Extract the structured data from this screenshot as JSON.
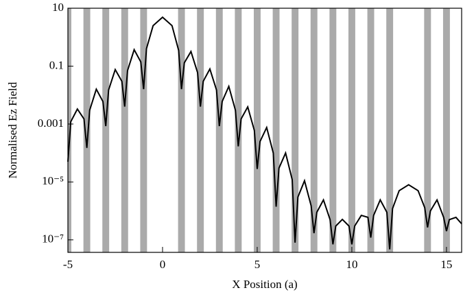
{
  "chart_data": {
    "type": "line",
    "xlabel": "X Position (a)",
    "ylabel": "Normalised Ez Field",
    "log_y": true,
    "xlim": [
      -5,
      15.8
    ],
    "ylim": [
      3.7e-08,
      10
    ],
    "xticks": [
      -5,
      0,
      5,
      10,
      15
    ],
    "yticks": [
      10,
      0.1,
      0.001,
      {
        "value": 1e-05,
        "label": "10⁻⁵"
      },
      {
        "value": 1e-07,
        "label": "10⁻⁷"
      }
    ],
    "rod_centers": [
      -5,
      -4,
      -3,
      -2,
      -1,
      1,
      2,
      3,
      4,
      5,
      6,
      7,
      8,
      9,
      10,
      11,
      12,
      14,
      15
    ],
    "rod_width": 0.36,
    "rod_color": "#aaaaaa",
    "x": [
      -5,
      -4.85,
      -4.5,
      -4.15,
      -4,
      -3.85,
      -3.5,
      -3.15,
      -3,
      -2.85,
      -2.5,
      -2.15,
      -2,
      -1.85,
      -1.5,
      -1.15,
      -1,
      -0.85,
      -0.5,
      0,
      0.5,
      0.85,
      1,
      1.15,
      1.5,
      1.85,
      2,
      2.15,
      2.5,
      2.85,
      3,
      3.15,
      3.5,
      3.85,
      4,
      4.15,
      4.5,
      4.85,
      5,
      5.15,
      5.5,
      5.85,
      6,
      6.15,
      6.5,
      6.85,
      7,
      7.15,
      7.5,
      7.85,
      8,
      8.15,
      8.5,
      8.85,
      9,
      9.15,
      9.5,
      9.85,
      10,
      10.15,
      10.5,
      10.85,
      11,
      11.15,
      11.5,
      11.85,
      12,
      12.15,
      12.5,
      13,
      13.5,
      13.85,
      14,
      14.15,
      14.5,
      14.85,
      15,
      15.15,
      15.5,
      15.8
    ],
    "series": [
      {
        "color": "#000000",
        "values": [
          5e-05,
          0.0012,
          0.0033,
          0.0015,
          0.00015,
          0.003,
          0.016,
          0.006,
          0.00085,
          0.015,
          0.076,
          0.03,
          0.004,
          0.07,
          0.37,
          0.14,
          0.016,
          0.4,
          2.5,
          4.9,
          2.5,
          0.35,
          0.016,
          0.13,
          0.32,
          0.06,
          0.004,
          0.03,
          0.08,
          0.015,
          0.00085,
          0.006,
          0.02,
          0.003,
          0.00017,
          0.0015,
          0.0039,
          0.0006,
          2.8e-05,
          0.00025,
          0.00076,
          0.0001,
          1.4e-06,
          3e-05,
          0.0001,
          1.2e-05,
          8e-08,
          3e-06,
          1.1e-05,
          1.5e-06,
          1.7e-07,
          9e-07,
          2.4e-06,
          5e-07,
          7e-08,
          3e-07,
          5.1e-07,
          3e-07,
          7e-08,
          3e-07,
          7e-07,
          6e-07,
          1.2e-07,
          7e-07,
          2.4e-06,
          9e-07,
          4.7e-08,
          1.2e-06,
          5e-06,
          8e-06,
          5e-06,
          1.3e-06,
          2.7e-07,
          1e-06,
          2.4e-06,
          6e-07,
          2e-07,
          5e-07,
          6e-07,
          3.6e-07
        ]
      }
    ]
  }
}
